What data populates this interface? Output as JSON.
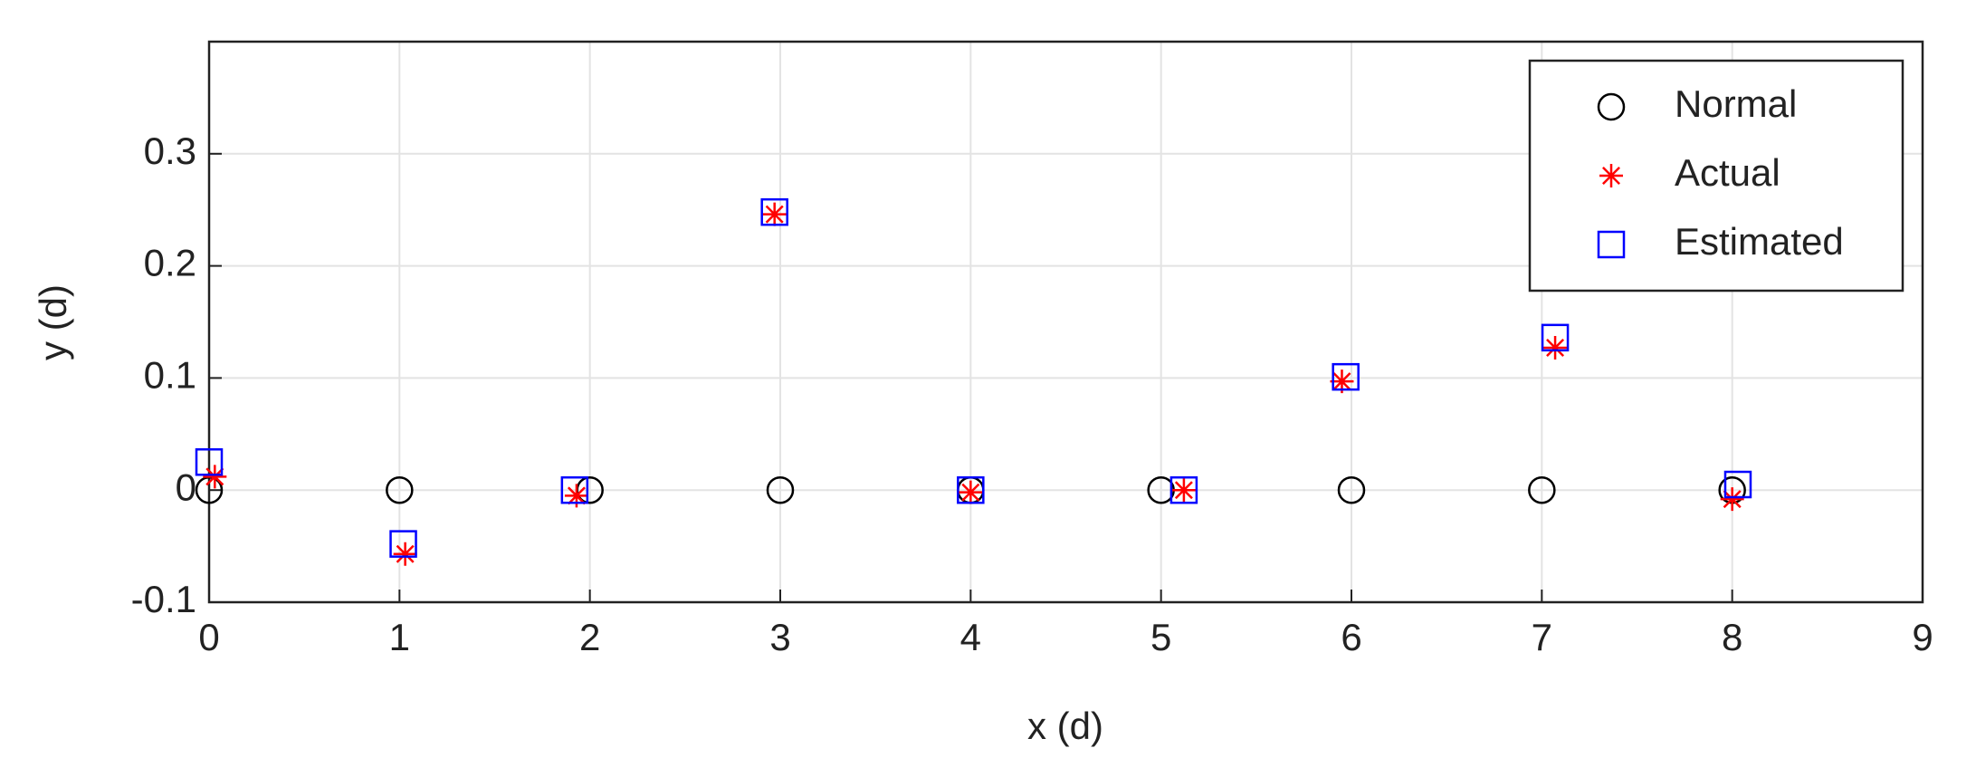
{
  "chart_data": {
    "type": "scatter",
    "xlabel": "x (d)",
    "ylabel": "y (d)",
    "xlim": [
      0,
      9
    ],
    "xticks": [
      0,
      1,
      2,
      3,
      4,
      5,
      6,
      7,
      8,
      9
    ],
    "ylim": [
      -0.1,
      0.4
    ],
    "yticks": [
      -0.1,
      0,
      0.1,
      0.2,
      0.3
    ],
    "grid": true,
    "legend": "upper right",
    "series": [
      {
        "name": "Normal",
        "color": "#000000",
        "marker": "o",
        "x": [
          0,
          1,
          2,
          3,
          4,
          5,
          6,
          7,
          8
        ],
        "values": [
          0,
          0,
          0,
          0,
          0,
          0,
          0,
          0,
          0
        ]
      },
      {
        "name": "Actual",
        "color": "#ff0000",
        "marker": "*",
        "x": [
          0.03,
          1.03,
          1.93,
          2.97,
          4.0,
          5.12,
          5.95,
          7.07,
          8.0
        ],
        "values": [
          0.012,
          -0.057,
          -0.005,
          0.246,
          -0.002,
          0.0,
          0.097,
          0.127,
          -0.008
        ]
      },
      {
        "name": "Estimated",
        "color": "#0000ff",
        "marker": "s",
        "x": [
          0.0,
          1.02,
          1.92,
          2.97,
          4.0,
          5.12,
          5.97,
          7.07,
          8.03
        ],
        "values": [
          0.025,
          -0.048,
          0.0,
          0.248,
          0.0,
          0.0,
          0.101,
          0.136,
          0.005
        ]
      }
    ]
  }
}
